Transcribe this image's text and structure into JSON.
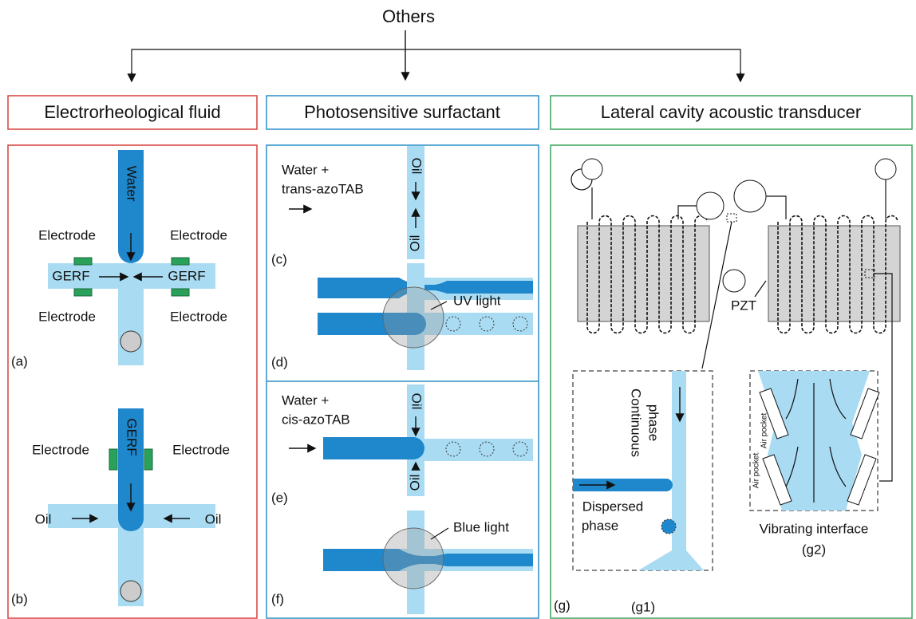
{
  "title": "Others",
  "headings": [
    "Electrorheological fluid",
    "Photosensitive surfactant",
    "Lateral cavity acoustic transducer"
  ],
  "panel_a": {
    "label": "(a)",
    "water": "Water",
    "electrodes": [
      "Electrode",
      "Electrode",
      "Electrode",
      "Electrode"
    ],
    "gerf": [
      "GERF",
      "GERF"
    ]
  },
  "panel_b": {
    "label": "(b)",
    "gerf": "GERF",
    "electrodes": [
      "Electrode",
      "Electrode"
    ],
    "oil": [
      "Oil",
      "Oil"
    ]
  },
  "panel_c": {
    "label": "(c)",
    "inlet": [
      "Water +",
      "trans-azoTAB"
    ],
    "oil": [
      "Oil",
      "Oil"
    ]
  },
  "panel_d": {
    "label": "(d)",
    "light": "UV light"
  },
  "panel_e": {
    "label": "(e)",
    "inlet": [
      "Water +",
      "cis-azoTAB"
    ],
    "oil": [
      "Oil",
      "Oil"
    ]
  },
  "panel_f": {
    "label": "(f)",
    "light": "Blue light"
  },
  "panel_g": {
    "label": "(g)",
    "pzt": "PZT",
    "g1": {
      "label": "(g1)",
      "continuous": [
        "Continuous",
        "phase"
      ],
      "dispersed": [
        "Dispersed",
        "phase"
      ]
    },
    "g2": {
      "label": "(g2)",
      "air_pocket": [
        "Air pocket",
        "Air pocket"
      ],
      "interface": "Vibrating interface"
    }
  }
}
